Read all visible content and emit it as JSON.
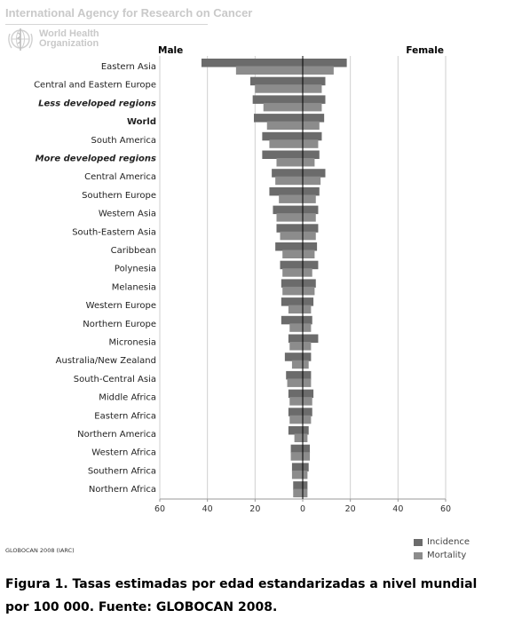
{
  "header": {
    "agency": "International Agency for Research on Cancer",
    "who_line1": "World Health",
    "who_line2": "Organization"
  },
  "colors": {
    "incidence": "#6b6b6b",
    "mortality": "#8c8c8c",
    "zero_line": "#000000",
    "grid": "#cfcfcf"
  },
  "chart_data": {
    "type": "bar",
    "orientation": "horizontal",
    "layout": "population-pyramid",
    "left_label": "Male",
    "right_label": "Female",
    "xlim": [
      -60,
      60
    ],
    "xticks": [
      -60,
      -40,
      -20,
      0,
      20,
      40,
      60
    ],
    "xtick_labels": [
      "60",
      "40",
      "20",
      "0",
      "20",
      "40",
      "60"
    ],
    "grid": true,
    "legend_position": "bottom-right",
    "categories": [
      {
        "label": "Eastern Asia",
        "style": "normal"
      },
      {
        "label": "Central and Eastern Europe",
        "style": "normal"
      },
      {
        "label": "Less developed regions",
        "style": "bold-italic"
      },
      {
        "label": "World",
        "style": "bold"
      },
      {
        "label": "South America",
        "style": "normal"
      },
      {
        "label": "More developed regions",
        "style": "bold-italic"
      },
      {
        "label": "Central America",
        "style": "normal"
      },
      {
        "label": "Southern Europe",
        "style": "normal"
      },
      {
        "label": "Western Asia",
        "style": "normal"
      },
      {
        "label": "South-Eastern Asia",
        "style": "normal"
      },
      {
        "label": "Caribbean",
        "style": "normal"
      },
      {
        "label": "Polynesia",
        "style": "normal"
      },
      {
        "label": "Melanesia",
        "style": "normal"
      },
      {
        "label": "Western Europe",
        "style": "normal"
      },
      {
        "label": "Northern Europe",
        "style": "normal"
      },
      {
        "label": "Micronesia",
        "style": "normal"
      },
      {
        "label": "Australia/New Zealand",
        "style": "normal"
      },
      {
        "label": "South-Central Asia",
        "style": "normal"
      },
      {
        "label": "Middle Africa",
        "style": "normal"
      },
      {
        "label": "Eastern Africa",
        "style": "normal"
      },
      {
        "label": "Northern America",
        "style": "normal"
      },
      {
        "label": "Western Africa",
        "style": "normal"
      },
      {
        "label": "Southern Africa",
        "style": "normal"
      },
      {
        "label": "Northern Africa",
        "style": "normal"
      }
    ],
    "series": [
      {
        "name": "Incidence",
        "male": [
          42.5,
          22.0,
          21.0,
          20.5,
          17.0,
          17.0,
          13.0,
          14.0,
          12.5,
          11.0,
          11.5,
          9.5,
          9.0,
          9.0,
          9.0,
          6.0,
          7.5,
          7.0,
          6.0,
          6.0,
          6.0,
          5.0,
          4.5,
          4.0
        ],
        "female": [
          18.5,
          9.5,
          9.5,
          9.0,
          8.0,
          7.0,
          9.5,
          7.0,
          6.5,
          6.5,
          6.0,
          6.5,
          5.5,
          4.5,
          4.0,
          6.5,
          3.5,
          3.5,
          4.5,
          4.0,
          2.5,
          3.0,
          2.5,
          2.0
        ]
      },
      {
        "name": "Mortality",
        "male": [
          28.0,
          20.0,
          16.5,
          15.0,
          14.0,
          11.0,
          11.5,
          10.0,
          11.0,
          9.5,
          8.5,
          8.5,
          8.5,
          6.0,
          5.5,
          5.5,
          4.5,
          6.5,
          5.5,
          5.5,
          3.5,
          5.0,
          4.5,
          4.0
        ],
        "female": [
          13.0,
          8.0,
          8.0,
          7.0,
          6.5,
          5.0,
          7.5,
          5.5,
          5.5,
          5.5,
          5.0,
          4.0,
          5.0,
          3.5,
          3.5,
          3.5,
          2.5,
          3.5,
          4.0,
          3.5,
          2.0,
          3.0,
          2.0,
          2.0
        ]
      }
    ]
  },
  "source": "GLOBOCAN 2008 (IARC)",
  "legend": [
    {
      "label": "Incidence"
    },
    {
      "label": "Mortality"
    }
  ],
  "caption": {
    "line1": "Figura 1.  Tasas estimadas por edad estandarizadas a nivel mundial",
    "line2": "por 100 000. Fuente: GLOBOCAN 2008."
  }
}
